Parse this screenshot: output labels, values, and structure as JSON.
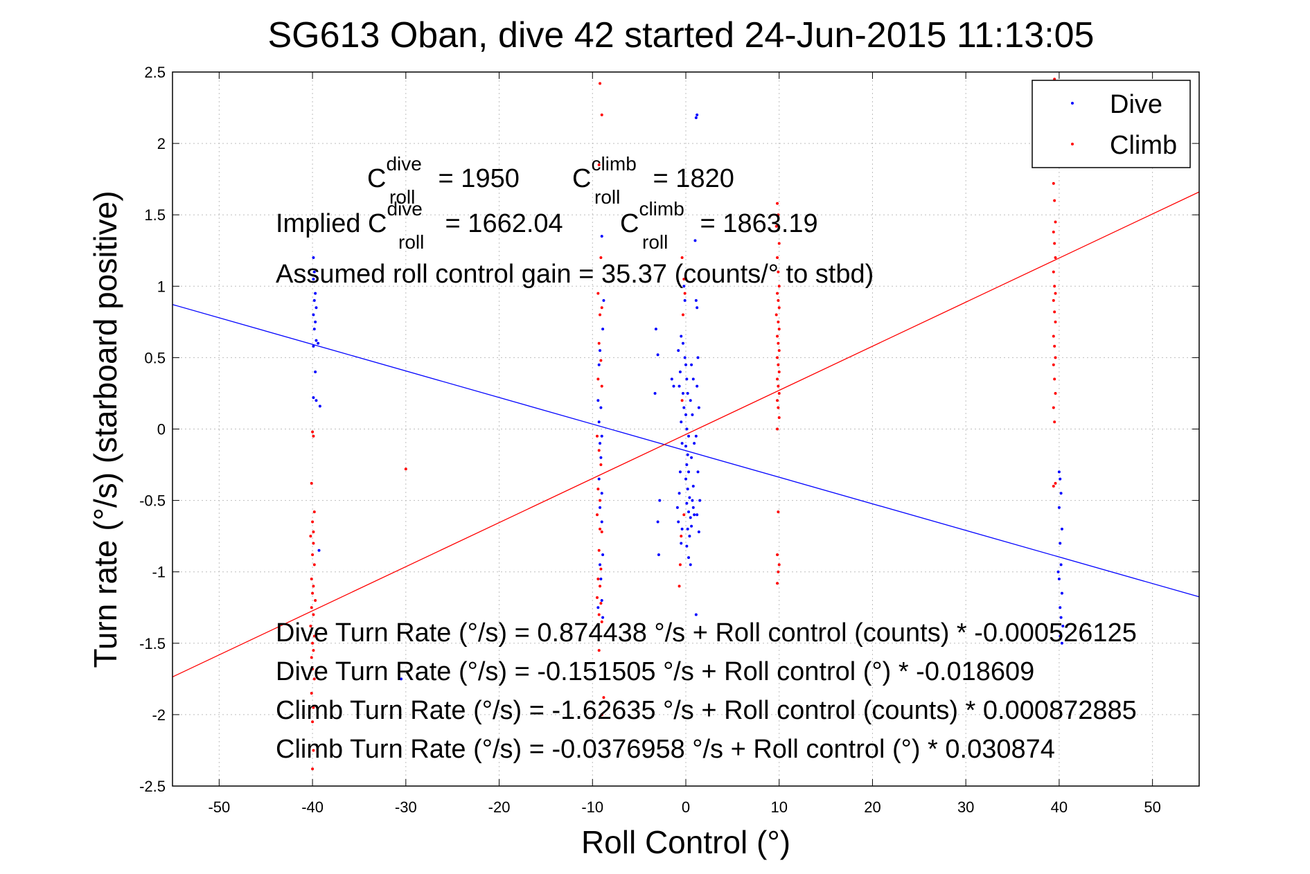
{
  "chart_data": {
    "type": "scatter",
    "title": "SG613 Oban, dive 42 started 24-Jun-2015 11:13:05",
    "xlabel": "Roll Control (°)",
    "ylabel": "Turn rate (°/s) (starboard positive)",
    "xlim": [
      -55,
      55
    ],
    "ylim": [
      -2.5,
      2.5
    ],
    "x_ticks": [
      -50,
      -40,
      -30,
      -20,
      -10,
      0,
      10,
      20,
      30,
      40,
      50
    ],
    "y_ticks": [
      2.5,
      2,
      1.5,
      1,
      0.5,
      0,
      -0.5,
      -1,
      -1.5,
      -2,
      -2.5
    ],
    "x_tick_labels": [
      "-50",
      "-40",
      "-30",
      "-20",
      "-10",
      "0",
      "10",
      "20",
      "30",
      "40",
      "50"
    ],
    "y_tick_labels": [
      "2.5",
      "2",
      "1.5",
      "1",
      "0.5",
      "0",
      "-0.5",
      "-1",
      "-1.5",
      "-2",
      "-2.5"
    ],
    "grid": true,
    "legend_position": "top-right",
    "series": [
      {
        "name": "Dive",
        "color": "#0000ff",
        "marker": "dot",
        "points": [
          [
            -39.9,
            1.2
          ],
          [
            -39.8,
            1.1
          ],
          [
            -39.9,
            1.05
          ],
          [
            -39.7,
            0.95
          ],
          [
            -39.8,
            0.9
          ],
          [
            -39.6,
            0.85
          ],
          [
            -39.9,
            0.8
          ],
          [
            -39.7,
            0.75
          ],
          [
            -39.8,
            0.7
          ],
          [
            -39.6,
            0.62
          ],
          [
            -39.9,
            0.58
          ],
          [
            -39.4,
            0.6
          ],
          [
            -39.7,
            0.4
          ],
          [
            -39.9,
            0.22
          ],
          [
            -39.6,
            0.2
          ],
          [
            -39.2,
            0.16
          ],
          [
            -39.3,
            -0.85
          ],
          [
            -30.5,
            -1.75
          ],
          [
            -9.4,
            0.2
          ],
          [
            -9.1,
            0.15
          ],
          [
            -9.3,
            0.05
          ],
          [
            -9.0,
            -0.05
          ],
          [
            -9.2,
            -0.1
          ],
          [
            -9.1,
            -0.2
          ],
          [
            -9.3,
            -0.35
          ],
          [
            -9.0,
            -0.45
          ],
          [
            -9.2,
            -0.55
          ],
          [
            -9.0,
            -0.65
          ],
          [
            -8.9,
            -0.88
          ],
          [
            -9.2,
            -0.95
          ],
          [
            -9.1,
            -1.05
          ],
          [
            -9.0,
            -1.2
          ],
          [
            -9.4,
            -1.25
          ],
          [
            -8.9,
            -1.32
          ],
          [
            -9.0,
            1.35
          ],
          [
            -8.9,
            0.7
          ],
          [
            -9.2,
            0.55
          ],
          [
            -9.3,
            0.45
          ],
          [
            -8.8,
            0.9
          ],
          [
            -3.2,
            0.7
          ],
          [
            -3.0,
            0.52
          ],
          [
            -3.3,
            0.25
          ],
          [
            -2.8,
            -0.5
          ],
          [
            -3.0,
            -0.65
          ],
          [
            -2.9,
            -0.88
          ],
          [
            -1.5,
            0.35
          ],
          [
            -1.3,
            0.3
          ],
          [
            -0.8,
            0.55
          ],
          [
            -0.5,
            0.65
          ],
          [
            -0.6,
            0.4
          ],
          [
            -0.7,
            0.3
          ],
          [
            -0.3,
            0.25
          ],
          [
            -0.2,
            0.15
          ],
          [
            -0.5,
            0.05
          ],
          [
            -0.4,
            -0.1
          ],
          [
            -0.6,
            -0.3
          ],
          [
            -0.7,
            -0.45
          ],
          [
            -0.9,
            -0.55
          ],
          [
            -0.8,
            -0.65
          ],
          [
            -0.4,
            -0.7
          ],
          [
            -0.5,
            -0.8
          ],
          [
            0.0,
            0.45
          ],
          [
            0.1,
            0.35
          ],
          [
            0.2,
            0.25
          ],
          [
            0.0,
            0.1
          ],
          [
            0.1,
            0.0
          ],
          [
            0.3,
            -0.05
          ],
          [
            0.0,
            -0.12
          ],
          [
            0.2,
            -0.18
          ],
          [
            0.1,
            -0.25
          ],
          [
            0.3,
            -0.3
          ],
          [
            0.0,
            -0.35
          ],
          [
            0.2,
            -0.42
          ],
          [
            0.4,
            -0.48
          ],
          [
            0.1,
            -0.52
          ],
          [
            0.3,
            -0.58
          ],
          [
            0.5,
            -0.62
          ],
          [
            0.2,
            -0.7
          ],
          [
            0.4,
            -0.75
          ],
          [
            0.1,
            -0.82
          ],
          [
            0.3,
            -0.9
          ],
          [
            0.5,
            -0.95
          ],
          [
            0.6,
            0.45
          ],
          [
            0.8,
            0.35
          ],
          [
            0.5,
            0.2
          ],
          [
            0.7,
            0.1
          ],
          [
            0.9,
            -0.1
          ],
          [
            0.6,
            -0.2
          ],
          [
            0.8,
            -0.4
          ],
          [
            0.7,
            -0.5
          ],
          [
            0.9,
            -0.6
          ],
          [
            0.6,
            -0.68
          ],
          [
            0.8,
            -0.55
          ],
          [
            1.2,
            2.2
          ],
          [
            1.1,
            2.18
          ],
          [
            1.0,
            1.32
          ],
          [
            1.1,
            0.9
          ],
          [
            1.2,
            0.85
          ],
          [
            1.3,
            0.5
          ],
          [
            1.2,
            0.3
          ],
          [
            1.4,
            0.15
          ],
          [
            1.1,
            -0.05
          ],
          [
            1.3,
            -0.3
          ],
          [
            1.5,
            -0.5
          ],
          [
            1.2,
            -0.6
          ],
          [
            1.4,
            -0.72
          ],
          [
            1.1,
            -1.3
          ],
          [
            -0.2,
            1.0
          ],
          [
            -0.1,
            0.9
          ],
          [
            -0.3,
            0.6
          ],
          [
            -0.1,
            0.5
          ],
          [
            40.0,
            -0.3
          ],
          [
            40.1,
            -0.35
          ],
          [
            40.2,
            -0.45
          ],
          [
            40.0,
            -0.55
          ],
          [
            40.3,
            -0.7
          ],
          [
            40.1,
            -0.8
          ],
          [
            40.2,
            -0.95
          ],
          [
            40.0,
            -1.05
          ],
          [
            40.3,
            -1.15
          ],
          [
            40.1,
            -1.25
          ],
          [
            40.2,
            -1.32
          ],
          [
            40.4,
            -1.38
          ],
          [
            40.1,
            -1.45
          ],
          [
            40.3,
            -1.5
          ],
          [
            39.9,
            -1.0
          ]
        ]
      },
      {
        "name": "Climb",
        "color": "#ff0000",
        "marker": "dot",
        "points": [
          [
            -40.0,
            -0.02
          ],
          [
            -39.9,
            -0.05
          ],
          [
            -40.1,
            -0.38
          ],
          [
            -39.8,
            -0.58
          ],
          [
            -40.0,
            -0.65
          ],
          [
            -39.9,
            -0.72
          ],
          [
            -40.2,
            -0.75
          ],
          [
            -39.9,
            -0.8
          ],
          [
            -40.0,
            -0.88
          ],
          [
            -39.8,
            -0.95
          ],
          [
            -40.1,
            -1.05
          ],
          [
            -39.9,
            -1.1
          ],
          [
            -40.0,
            -1.15
          ],
          [
            -39.7,
            -1.2
          ],
          [
            -40.1,
            -1.25
          ],
          [
            -39.9,
            -1.3
          ],
          [
            -40.2,
            -1.38
          ],
          [
            -39.8,
            -1.45
          ],
          [
            -40.0,
            -1.5
          ],
          [
            -39.9,
            -1.55
          ],
          [
            -40.1,
            -1.6
          ],
          [
            -40.0,
            -1.68
          ],
          [
            -39.8,
            -1.75
          ],
          [
            -40.1,
            -1.85
          ],
          [
            -39.9,
            -1.95
          ],
          [
            -40.0,
            -2.05
          ],
          [
            -39.9,
            -2.25
          ],
          [
            -40.0,
            -2.38
          ],
          [
            -30.0,
            -0.28
          ],
          [
            -9.2,
            2.42
          ],
          [
            -9.0,
            2.2
          ],
          [
            -9.3,
            1.85
          ],
          [
            -9.1,
            1.2
          ],
          [
            -9.4,
            0.95
          ],
          [
            -9.0,
            0.85
          ],
          [
            -9.2,
            0.8
          ],
          [
            -9.3,
            0.6
          ],
          [
            -9.1,
            0.48
          ],
          [
            -9.4,
            0.35
          ],
          [
            -9.0,
            0.3
          ],
          [
            -9.5,
            -0.05
          ],
          [
            -9.3,
            -0.15
          ],
          [
            -9.1,
            -0.25
          ],
          [
            -9.4,
            -0.42
          ],
          [
            -9.2,
            -0.5
          ],
          [
            -9.5,
            -0.6
          ],
          [
            -9.2,
            -0.7
          ],
          [
            -9.0,
            -0.72
          ],
          [
            -9.3,
            -0.85
          ],
          [
            -9.1,
            -0.98
          ],
          [
            -9.4,
            -1.05
          ],
          [
            -9.2,
            -1.1
          ],
          [
            -9.5,
            -1.18
          ],
          [
            -9.1,
            -1.22
          ],
          [
            -9.3,
            -1.3
          ],
          [
            -9.0,
            -1.35
          ],
          [
            -8.8,
            -1.88
          ],
          [
            -9.0,
            -2.0
          ],
          [
            -9.3,
            -1.55
          ],
          [
            -0.4,
            1.2
          ],
          [
            -0.2,
            1.05
          ],
          [
            -0.1,
            0.95
          ],
          [
            -0.3,
            0.8
          ],
          [
            -0.5,
            -0.75
          ],
          [
            -0.6,
            -0.95
          ],
          [
            -0.7,
            -1.1
          ],
          [
            -0.2,
            -0.6
          ],
          [
            -0.4,
            0.2
          ],
          [
            9.8,
            1.58
          ],
          [
            9.9,
            1.5
          ],
          [
            9.7,
            1.42
          ],
          [
            10.0,
            1.3
          ],
          [
            9.8,
            1.2
          ],
          [
            9.9,
            1.1
          ],
          [
            10.0,
            1.0
          ],
          [
            9.8,
            0.95
          ],
          [
            9.9,
            0.9
          ],
          [
            10.0,
            0.85
          ],
          [
            9.7,
            0.8
          ],
          [
            9.9,
            0.75
          ],
          [
            10.0,
            0.7
          ],
          [
            9.8,
            0.65
          ],
          [
            9.9,
            0.6
          ],
          [
            10.0,
            0.55
          ],
          [
            9.8,
            0.5
          ],
          [
            9.9,
            0.45
          ],
          [
            10.0,
            0.4
          ],
          [
            9.8,
            0.35
          ],
          [
            9.9,
            0.3
          ],
          [
            10.0,
            0.25
          ],
          [
            9.8,
            0.2
          ],
          [
            9.9,
            0.15
          ],
          [
            10.0,
            0.08
          ],
          [
            9.8,
            0.0
          ],
          [
            9.9,
            -0.58
          ],
          [
            9.8,
            -0.88
          ],
          [
            10.0,
            -0.95
          ],
          [
            9.9,
            -1.0
          ],
          [
            9.8,
            -1.08
          ],
          [
            39.5,
            2.45
          ],
          [
            39.6,
            1.88
          ],
          [
            39.4,
            1.72
          ],
          [
            39.5,
            1.6
          ],
          [
            39.6,
            1.45
          ],
          [
            39.4,
            1.38
          ],
          [
            39.5,
            1.3
          ],
          [
            39.6,
            1.2
          ],
          [
            39.4,
            1.1
          ],
          [
            39.5,
            1.0
          ],
          [
            39.6,
            0.95
          ],
          [
            39.4,
            0.9
          ],
          [
            39.5,
            0.82
          ],
          [
            39.6,
            0.75
          ],
          [
            39.4,
            0.65
          ],
          [
            39.5,
            0.58
          ],
          [
            39.6,
            0.5
          ],
          [
            39.4,
            0.45
          ],
          [
            39.5,
            0.35
          ],
          [
            39.6,
            0.25
          ],
          [
            39.4,
            0.15
          ],
          [
            39.5,
            0.05
          ],
          [
            39.6,
            -0.38
          ],
          [
            39.4,
            -0.4
          ]
        ]
      }
    ],
    "fit_lines": [
      {
        "series": "Dive",
        "color": "#0000ff",
        "intercept": -0.151505,
        "slope": -0.018609
      },
      {
        "series": "Climb",
        "color": "#ff0000",
        "intercept": -0.0376958,
        "slope": 0.030874
      }
    ],
    "annotations": {
      "c_dive_prefix": "C",
      "c_dive_sup": "dive",
      "c_dive_sub": "roll",
      "c_dive_value": " = 1950",
      "c_climb_prefix": "C",
      "c_climb_sup": "climb",
      "c_climb_sub": "roll",
      "c_climb_value": " = 1820",
      "implied_prefix": "Implied C",
      "implied_dive_sup": "dive",
      "implied_dive_sub": "roll",
      "implied_dive_value": " = 1662.04",
      "implied_climb_prefix": "C",
      "implied_climb_sup": "climb",
      "implied_climb_sub": "roll",
      "implied_climb_value": " = 1863.19",
      "gain_line": "Assumed roll control gain = 35.37 (counts/° to stbd)",
      "eq1": "Dive Turn Rate (°/s) = 0.874438 °/s + Roll control (counts) * -0.000526125",
      "eq2": "Dive Turn Rate (°/s) = -0.151505 °/s + Roll control (°) * -0.018609",
      "eq3": "Climb Turn Rate (°/s) = -1.62635 °/s + Roll control (counts) * 0.000872885",
      "eq4": "Climb Turn Rate (°/s) = -0.0376958 °/s + Roll control (°) * 0.030874"
    }
  }
}
